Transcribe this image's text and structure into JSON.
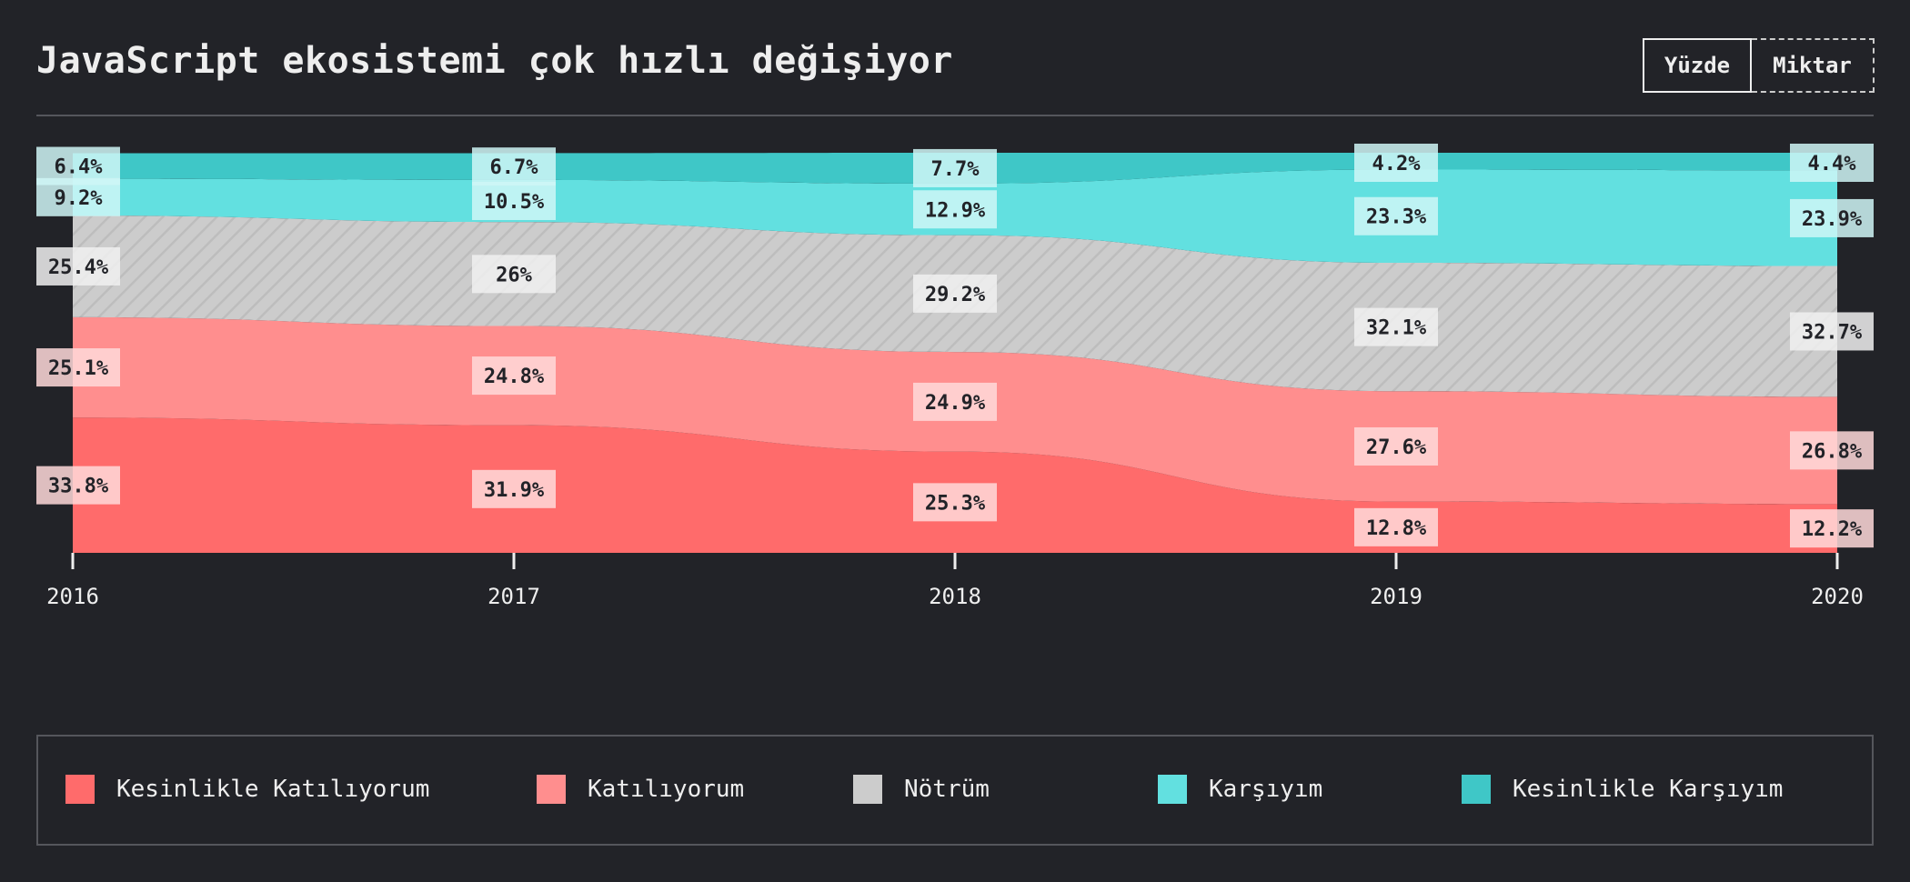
{
  "title": "JavaScript ekosistemi çok hızlı değişiyor",
  "toggle": {
    "percent_label": "Yüzde",
    "count_label": "Miktar",
    "selected": "Yüzde"
  },
  "colors": {
    "background": "#222328",
    "Kesinlikle Katılıyorum": "#ff6b6b",
    "Katılıyorum": "#ff8e8e",
    "Nötrüm": "#cccccc",
    "Karşıyım": "#62e0e0",
    "Kesinlikle Karşıyım": "#3fc7c7"
  },
  "legend": [
    {
      "label": "Kesinlikle Katılıyorum",
      "color": "#ff6b6b"
    },
    {
      "label": "Katılıyorum",
      "color": "#ff8e8e"
    },
    {
      "label": "Nötrüm",
      "color": "#cccccc"
    },
    {
      "label": "Karşıyım",
      "color": "#62e0e0"
    },
    {
      "label": "Kesinlikle Karşıyım",
      "color": "#3fc7c7"
    }
  ],
  "chart_data": {
    "type": "area",
    "stacking": "percent",
    "legend_position": "bottom",
    "grid": false,
    "ylim": [
      0,
      100
    ],
    "x": [
      "2016",
      "2017",
      "2018",
      "2019",
      "2020"
    ],
    "series": [
      {
        "name": "Kesinlikle Katılıyorum",
        "values": [
          33.8,
          31.9,
          25.3,
          12.8,
          12.2
        ],
        "color": "#ff6b6b"
      },
      {
        "name": "Katılıyorum",
        "values": [
          25.1,
          24.8,
          24.9,
          27.6,
          26.8
        ],
        "color": "#ff8e8e"
      },
      {
        "name": "Nötrüm",
        "values": [
          25.4,
          26,
          29.2,
          32.1,
          32.7
        ],
        "color": "#cccccc",
        "hatched": true
      },
      {
        "name": "Karşıyım",
        "values": [
          9.2,
          10.5,
          12.9,
          23.3,
          23.9
        ],
        "color": "#62e0e0"
      },
      {
        "name": "Kesinlikle Karşıyım",
        "values": [
          6.4,
          6.7,
          7.7,
          4.2,
          4.4
        ],
        "color": "#3fc7c7"
      }
    ],
    "labels": [
      [
        "33.8%",
        "31.9%",
        "25.3%",
        "12.8%",
        "12.2%"
      ],
      [
        "25.1%",
        "24.8%",
        "24.9%",
        "27.6%",
        "26.8%"
      ],
      [
        "25.4%",
        "26%",
        "29.2%",
        "32.1%",
        "32.7%"
      ],
      [
        "9.2%",
        "10.5%",
        "12.9%",
        "23.3%",
        "23.9%"
      ],
      [
        "6.4%",
        "6.7%",
        "7.7%",
        "4.2%",
        "4.4%"
      ]
    ]
  }
}
